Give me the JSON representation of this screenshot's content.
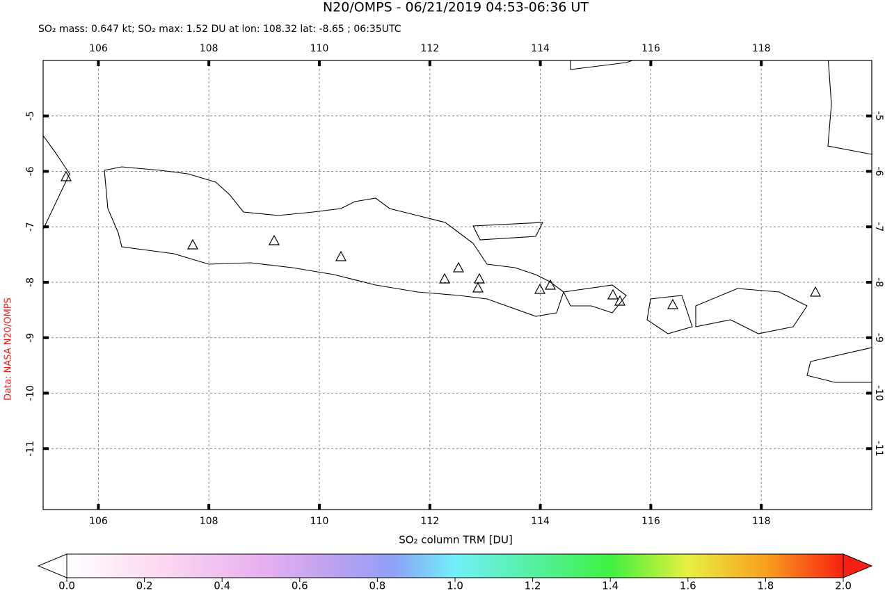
{
  "chart_data": {
    "type": "map",
    "title": "N20/OMPS - 06/21/2019 04:53-06:36 UT",
    "subtitle": "SO₂ mass: 0.647 kt; SO₂ max: 1.52 DU at lon: 108.32 lat: -8.65 ; 06:35UTC",
    "credit": "Data: NASA N20/OMPS",
    "xlim": [
      105,
      120
    ],
    "ylim": [
      -12.1,
      -4
    ],
    "xticks": [
      106,
      108,
      110,
      112,
      114,
      116,
      118
    ],
    "yticks": [
      -5,
      -6,
      -7,
      -8,
      -9,
      -10,
      -11
    ],
    "grid": true,
    "colorbar": {
      "label": "SO₂ column TRM [DU]",
      "lim": [
        0,
        2
      ],
      "ticks": [
        {
          "value": 0,
          "label": "0.0"
        },
        0.2,
        0.4,
        0.6,
        0.8,
        {
          "value": 1,
          "label": "1.0"
        },
        1.2,
        1.4,
        1.6,
        1.8,
        {
          "value": 2,
          "label": "2.0"
        }
      ]
    }
  }
}
